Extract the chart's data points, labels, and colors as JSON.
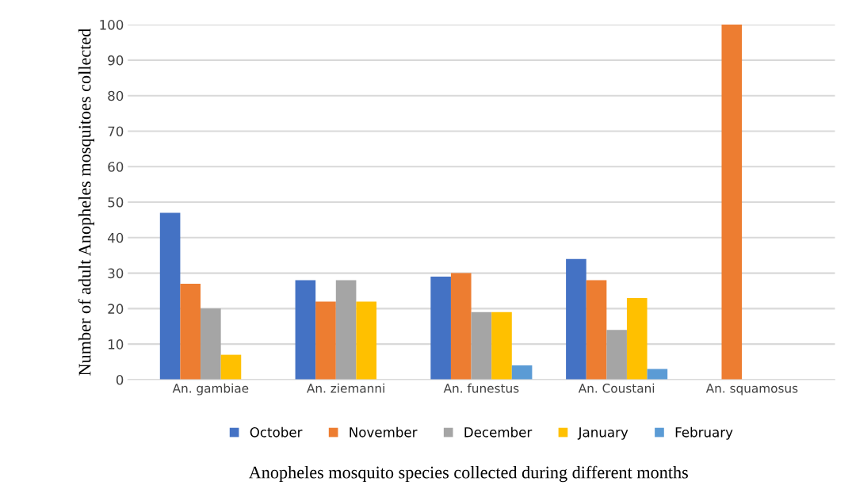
{
  "chart_data": {
    "type": "bar",
    "xlabel": "Anopheles mosquito species collected during different months",
    "ylabel": "Number of adult Anopheles mosquitoes collected",
    "categories": [
      "An. gambiae",
      "An. ziemanni",
      "An. funestus",
      "An. Coustani",
      "An. squamosus"
    ],
    "series": [
      {
        "name": "October",
        "color": "#4472c4",
        "values": [
          47,
          28,
          29,
          34,
          0
        ]
      },
      {
        "name": "November",
        "color": "#ed7d31",
        "values": [
          27,
          22,
          30,
          28,
          100
        ]
      },
      {
        "name": "December",
        "color": "#a5a5a5",
        "values": [
          20,
          28,
          19,
          14,
          0
        ]
      },
      {
        "name": "January",
        "color": "#ffc000",
        "values": [
          7,
          22,
          19,
          23,
          0
        ]
      },
      {
        "name": "February",
        "color": "#5b9bd5",
        "values": [
          0,
          0,
          4,
          3,
          0
        ]
      }
    ],
    "ylim": [
      0,
      100
    ],
    "yticks": [
      0,
      10,
      20,
      30,
      40,
      50,
      60,
      70,
      80,
      90,
      100
    ],
    "grid": "y",
    "legend": "bottom"
  }
}
